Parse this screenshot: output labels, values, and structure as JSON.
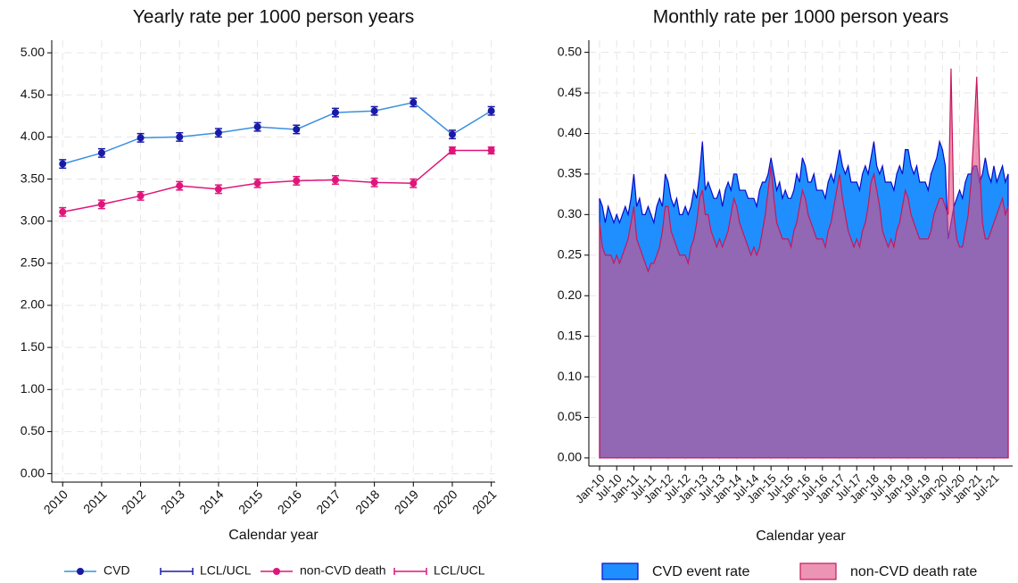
{
  "chart_data": [
    {
      "type": "line",
      "title": "Yearly rate per 1000 person years",
      "xlabel": "Calendar year",
      "x": [
        2010,
        2011,
        2012,
        2013,
        2014,
        2015,
        2016,
        2017,
        2018,
        2019,
        2020,
        2021
      ],
      "xlim": [
        2009.72,
        2021.1
      ],
      "xticks": [
        2010,
        2011,
        2012,
        2013,
        2014,
        2015,
        2016,
        2017,
        2018,
        2019,
        2020,
        2021
      ],
      "ylim": [
        -0.1,
        5.15
      ],
      "yticks": [
        {
          "value": 0,
          "label": "0.00"
        },
        {
          "value": 0.5,
          "label": "0.50"
        },
        {
          "value": 1,
          "label": "1.00"
        },
        {
          "value": 1.5,
          "label": "1.50"
        },
        {
          "value": 2,
          "label": "2.00"
        },
        {
          "value": 2.5,
          "label": "2.50"
        },
        {
          "value": 3,
          "label": "3.00"
        },
        {
          "value": 3.5,
          "label": "3.50"
        },
        {
          "value": 4,
          "label": "4.00"
        },
        {
          "value": 4.5,
          "label": "4.50"
        },
        {
          "value": 5,
          "label": "5.00"
        }
      ],
      "grid": true,
      "series": [
        {
          "name": "CVD",
          "color": "#3a8fe0",
          "marker_color": "#1a1aa8",
          "error_label": "LCL/UCL",
          "values": [
            3.68,
            3.81,
            3.99,
            4.0,
            4.05,
            4.12,
            4.09,
            4.29,
            4.31,
            4.41,
            4.03,
            4.31
          ],
          "error": [
            0.05,
            0.05,
            0.05,
            0.05,
            0.05,
            0.05,
            0.05,
            0.05,
            0.05,
            0.05,
            0.05,
            0.05
          ]
        },
        {
          "name": "non-CVD death",
          "color": "#e0157a",
          "marker_color": "#e0157a",
          "error_label": "LCL/UCL",
          "values": [
            3.11,
            3.2,
            3.3,
            3.42,
            3.38,
            3.45,
            3.48,
            3.49,
            3.46,
            3.45,
            3.84,
            3.84
          ],
          "error": [
            0.05,
            0.05,
            0.05,
            0.05,
            0.05,
            0.05,
            0.05,
            0.05,
            0.05,
            0.05,
            0.04,
            0.04
          ]
        }
      ]
    },
    {
      "type": "area",
      "title": "Monthly rate per 1000 person years",
      "xlabel": "Calendar year",
      "categories": [
        "Jan-10",
        null,
        null,
        null,
        null,
        null,
        "Jul-10",
        null,
        null,
        null,
        null,
        null,
        "Jan-11",
        null,
        null,
        null,
        null,
        null,
        "Jul-11",
        null,
        null,
        null,
        null,
        null,
        "Jan-12",
        null,
        null,
        null,
        null,
        null,
        "Jul-12",
        null,
        null,
        null,
        null,
        null,
        "Jan-13",
        null,
        null,
        null,
        null,
        null,
        "Jul-13",
        null,
        null,
        null,
        null,
        null,
        "Jan-14",
        null,
        null,
        null,
        null,
        null,
        "Jul-14",
        null,
        null,
        null,
        null,
        null,
        "Jan-15",
        null,
        null,
        null,
        null,
        null,
        "Jul-15",
        null,
        null,
        null,
        null,
        null,
        "Jan-16",
        null,
        null,
        null,
        null,
        null,
        "Jul-16",
        null,
        null,
        null,
        null,
        null,
        "Jan-17",
        null,
        null,
        null,
        null,
        null,
        "Jul-17",
        null,
        null,
        null,
        null,
        null,
        "Jan-18",
        null,
        null,
        null,
        null,
        null,
        "Jul-18",
        null,
        null,
        null,
        null,
        null,
        "Jan-19",
        null,
        null,
        null,
        null,
        null,
        "Jul-19",
        null,
        null,
        null,
        null,
        null,
        "Jan-20",
        null,
        null,
        null,
        null,
        null,
        "Jul-20",
        null,
        null,
        null,
        null,
        null,
        "Jan-21",
        null,
        null,
        null,
        null,
        null,
        "Jul-21",
        null,
        null,
        null,
        null,
        null
      ],
      "ylim": [
        -0.01,
        0.515
      ],
      "yticks": [
        {
          "value": 0,
          "label": "0.00"
        },
        {
          "value": 0.05,
          "label": "0.05"
        },
        {
          "value": 0.1,
          "label": "0.10"
        },
        {
          "value": 0.15,
          "label": "0.15"
        },
        {
          "value": 0.2,
          "label": "0.20"
        },
        {
          "value": 0.25,
          "label": "0.25"
        },
        {
          "value": 0.3,
          "label": "0.30"
        },
        {
          "value": 0.35,
          "label": "0.35"
        },
        {
          "value": 0.4,
          "label": "0.40"
        },
        {
          "value": 0.45,
          "label": "0.45"
        },
        {
          "value": 0.5,
          "label": "0.50"
        }
      ],
      "grid": true,
      "series": [
        {
          "name": "CVD event rate",
          "color": "#1f8fff",
          "line_color": "#0a0acc",
          "opacity": 1,
          "values": [
            0.32,
            0.31,
            0.29,
            0.31,
            0.3,
            0.29,
            0.3,
            0.29,
            0.3,
            0.31,
            0.3,
            0.32,
            0.35,
            0.31,
            0.32,
            0.3,
            0.3,
            0.31,
            0.3,
            0.29,
            0.31,
            0.32,
            0.31,
            0.35,
            0.34,
            0.32,
            0.31,
            0.32,
            0.3,
            0.3,
            0.31,
            0.3,
            0.31,
            0.33,
            0.32,
            0.35,
            0.39,
            0.33,
            0.34,
            0.33,
            0.32,
            0.32,
            0.33,
            0.31,
            0.33,
            0.34,
            0.33,
            0.35,
            0.35,
            0.33,
            0.33,
            0.33,
            0.32,
            0.32,
            0.32,
            0.31,
            0.33,
            0.34,
            0.34,
            0.35,
            0.37,
            0.35,
            0.33,
            0.34,
            0.32,
            0.33,
            0.32,
            0.32,
            0.33,
            0.35,
            0.34,
            0.37,
            0.36,
            0.34,
            0.34,
            0.35,
            0.33,
            0.33,
            0.33,
            0.32,
            0.34,
            0.35,
            0.34,
            0.36,
            0.38,
            0.36,
            0.35,
            0.36,
            0.34,
            0.34,
            0.34,
            0.33,
            0.35,
            0.36,
            0.35,
            0.37,
            0.39,
            0.36,
            0.35,
            0.36,
            0.34,
            0.34,
            0.34,
            0.33,
            0.35,
            0.36,
            0.35,
            0.38,
            0.38,
            0.36,
            0.35,
            0.36,
            0.34,
            0.34,
            0.34,
            0.33,
            0.35,
            0.36,
            0.37,
            0.39,
            0.38,
            0.36,
            0.27,
            0.29,
            0.31,
            0.32,
            0.33,
            0.32,
            0.34,
            0.35,
            0.35,
            0.36,
            0.36,
            0.34,
            0.35,
            0.37,
            0.35,
            0.34,
            0.36,
            0.34,
            0.35,
            0.36,
            0.34,
            0.35
          ]
        },
        {
          "name": "non-CVD death rate",
          "color": "#df4c82",
          "line_color": "#c8185a",
          "opacity": 0.6,
          "values": [
            0.29,
            0.26,
            0.25,
            0.25,
            0.25,
            0.24,
            0.25,
            0.24,
            0.25,
            0.26,
            0.27,
            0.29,
            0.31,
            0.27,
            0.26,
            0.25,
            0.24,
            0.23,
            0.24,
            0.24,
            0.25,
            0.26,
            0.28,
            0.31,
            0.31,
            0.28,
            0.27,
            0.26,
            0.25,
            0.25,
            0.25,
            0.24,
            0.26,
            0.27,
            0.29,
            0.32,
            0.33,
            0.3,
            0.3,
            0.28,
            0.27,
            0.26,
            0.27,
            0.26,
            0.27,
            0.28,
            0.3,
            0.32,
            0.31,
            0.29,
            0.28,
            0.27,
            0.26,
            0.25,
            0.26,
            0.25,
            0.26,
            0.28,
            0.3,
            0.33,
            0.36,
            0.32,
            0.29,
            0.28,
            0.27,
            0.27,
            0.27,
            0.26,
            0.28,
            0.29,
            0.31,
            0.33,
            0.32,
            0.3,
            0.29,
            0.28,
            0.27,
            0.27,
            0.27,
            0.26,
            0.28,
            0.29,
            0.31,
            0.33,
            0.35,
            0.32,
            0.3,
            0.28,
            0.27,
            0.26,
            0.27,
            0.26,
            0.28,
            0.29,
            0.31,
            0.34,
            0.35,
            0.33,
            0.31,
            0.28,
            0.27,
            0.26,
            0.27,
            0.26,
            0.28,
            0.29,
            0.31,
            0.33,
            0.32,
            0.3,
            0.29,
            0.28,
            0.27,
            0.27,
            0.27,
            0.27,
            0.28,
            0.3,
            0.31,
            0.32,
            0.32,
            0.31,
            0.3,
            0.48,
            0.3,
            0.27,
            0.26,
            0.26,
            0.28,
            0.3,
            0.34,
            0.4,
            0.47,
            0.36,
            0.29,
            0.27,
            0.27,
            0.28,
            0.29,
            0.3,
            0.31,
            0.32,
            0.3,
            0.31
          ]
        }
      ]
    }
  ]
}
